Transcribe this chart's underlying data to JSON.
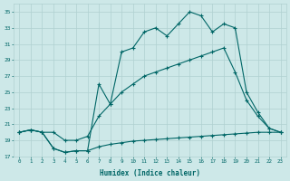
{
  "xlabel": "Humidex (Indice chaleur)",
  "bg_color": "#cde8e8",
  "line_color": "#006666",
  "grid_color": "#b0d0d0",
  "xlim": [
    -0.5,
    23.5
  ],
  "ylim": [
    17,
    36
  ],
  "xticks": [
    0,
    1,
    2,
    3,
    4,
    5,
    6,
    7,
    8,
    9,
    10,
    11,
    12,
    13,
    14,
    15,
    16,
    17,
    18,
    19,
    20,
    21,
    22,
    23
  ],
  "yticks": [
    17,
    19,
    21,
    23,
    25,
    27,
    29,
    31,
    33,
    35
  ],
  "line1_x": [
    0,
    1,
    2,
    3,
    4,
    5,
    6,
    7,
    8,
    9,
    10,
    11,
    12,
    13,
    14,
    15,
    16,
    17,
    18,
    19,
    20,
    21,
    22,
    23
  ],
  "line1_y": [
    20.0,
    20.3,
    20.0,
    18.0,
    17.5,
    17.7,
    17.7,
    18.2,
    18.5,
    18.7,
    18.9,
    19.0,
    19.1,
    19.2,
    19.3,
    19.4,
    19.5,
    19.6,
    19.7,
    19.8,
    19.9,
    20.0,
    20.0,
    20.0
  ],
  "line2_x": [
    0,
    1,
    2,
    3,
    4,
    5,
    6,
    7,
    8,
    9,
    10,
    11,
    12,
    13,
    14,
    15,
    16,
    17,
    18,
    19,
    20,
    21,
    22,
    23
  ],
  "line2_y": [
    20.0,
    20.3,
    20.0,
    20.0,
    19.0,
    19.0,
    19.5,
    22.0,
    23.5,
    25.0,
    26.0,
    27.0,
    27.5,
    28.0,
    28.5,
    29.0,
    29.5,
    30.0,
    30.5,
    27.5,
    24.0,
    22.0,
    20.5,
    20.0
  ],
  "line3_x": [
    0,
    1,
    2,
    3,
    4,
    5,
    6,
    7,
    8,
    9,
    10,
    11,
    12,
    13,
    14,
    15,
    16,
    17,
    18,
    19,
    20,
    21,
    22,
    23
  ],
  "line3_y": [
    20.0,
    20.3,
    20.0,
    18.0,
    17.5,
    17.7,
    17.7,
    26.0,
    23.5,
    30.0,
    30.5,
    32.5,
    33.0,
    32.0,
    33.5,
    35.0,
    34.5,
    32.5,
    33.5,
    33.0,
    25.0,
    22.5,
    20.5,
    20.0
  ]
}
